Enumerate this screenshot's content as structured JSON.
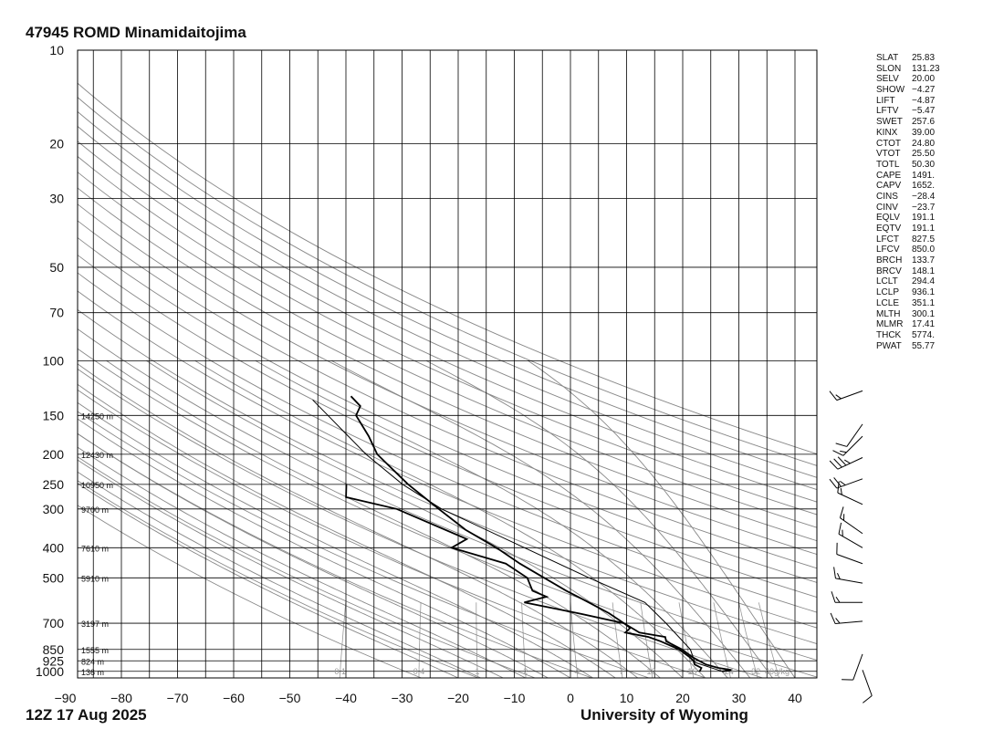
{
  "title": "47945 ROMD Minamidaitojima",
  "datetime": "12Z 17 Aug 2025",
  "credit": "University of Wyoming",
  "chart_data": {
    "type": "skew-t",
    "x_axis_temperature_ticks": [
      -90,
      -80,
      -70,
      -60,
      -50,
      -40,
      -30,
      -20,
      -10,
      0,
      10,
      20,
      30,
      40
    ],
    "y_axis_pressure_ticks": [
      10,
      20,
      30,
      50,
      70,
      100,
      150,
      200,
      250,
      300,
      400,
      500,
      700,
      850,
      925,
      1000
    ],
    "height_labels": [
      {
        "p": 150,
        "label": "14250 m"
      },
      {
        "p": 200,
        "label": "12430 m"
      },
      {
        "p": 250,
        "label": "10950 m"
      },
      {
        "p": 300,
        "label": "9700 m"
      },
      {
        "p": 400,
        "label": "7610 m"
      },
      {
        "p": 500,
        "label": "5910 m"
      },
      {
        "p": 700,
        "label": "3197 m"
      },
      {
        "p": 850,
        "label": "1555 m"
      },
      {
        "p": 925,
        "label": "824 m"
      },
      {
        "p": 1000,
        "label": "136 m"
      }
    ],
    "mixing_ratio_labels": [
      "0.1",
      "0.4",
      "1",
      "2",
      "4",
      "7",
      "10",
      "16",
      "24",
      "32",
      "40g/kg"
    ],
    "temperature_profile": [
      [
        1000,
        26.5
      ],
      [
        990,
        28
      ],
      [
        975,
        25.5
      ],
      [
        950,
        23
      ],
      [
        925,
        21.5
      ],
      [
        900,
        20
      ],
      [
        850,
        17.5
      ],
      [
        800,
        14
      ],
      [
        775,
        13.5
      ],
      [
        750,
        8.5
      ],
      [
        700,
        5
      ],
      [
        650,
        1.5
      ],
      [
        600,
        -3
      ],
      [
        550,
        -8
      ],
      [
        500,
        -13
      ],
      [
        450,
        -18.5
      ],
      [
        400,
        -24
      ],
      [
        350,
        -31
      ],
      [
        300,
        -37.5
      ],
      [
        250,
        -45
      ],
      [
        200,
        -53
      ],
      [
        175,
        -56
      ],
      [
        150,
        -60
      ],
      [
        140,
        -60
      ],
      [
        130,
        -62.5
      ]
    ],
    "dewpoint_profile": [
      [
        1000,
        22.5
      ],
      [
        990,
        22.5
      ],
      [
        975,
        22.5
      ],
      [
        950,
        21
      ],
      [
        925,
        20.5
      ],
      [
        900,
        19.5
      ],
      [
        850,
        17
      ],
      [
        800,
        13
      ],
      [
        775,
        10.5
      ],
      [
        750,
        6
      ],
      [
        725,
        6.5
      ],
      [
        700,
        5
      ],
      [
        650,
        -4
      ],
      [
        600,
        -14.5
      ],
      [
        575,
        -11
      ],
      [
        550,
        -14
      ],
      [
        500,
        -16
      ],
      [
        450,
        -21
      ],
      [
        400,
        -32
      ],
      [
        375,
        -30
      ],
      [
        300,
        -45
      ],
      [
        275,
        -55
      ],
      [
        250,
        -56
      ]
    ],
    "parcel_profile": [
      [
        1000,
        26.5
      ],
      [
        936.1,
        20.9
      ],
      [
        850,
        19
      ],
      [
        700,
        12.5
      ],
      [
        600,
        7
      ],
      [
        500,
        -5
      ],
      [
        400,
        -19
      ],
      [
        300,
        -37
      ],
      [
        250,
        -46
      ],
      [
        200,
        -55
      ],
      [
        150,
        -65
      ],
      [
        133.7,
        -69
      ]
    ],
    "indices": [
      {
        "name": "SLAT",
        "value": "25.83"
      },
      {
        "name": "SLON",
        "value": "131.23"
      },
      {
        "name": "SELV",
        "value": "20.00"
      },
      {
        "name": "SHOW",
        "value": "-4.27"
      },
      {
        "name": "LIFT",
        "value": "-4.87"
      },
      {
        "name": "LFTV",
        "value": "-5.47"
      },
      {
        "name": "SWET",
        "value": "257.6"
      },
      {
        "name": "KINX",
        "value": "39.00"
      },
      {
        "name": "CTOT",
        "value": "24.80"
      },
      {
        "name": "VTOT",
        "value": "25.50"
      },
      {
        "name": "TOTL",
        "value": "50.30"
      },
      {
        "name": "CAPE",
        "value": "1491."
      },
      {
        "name": "CAPV",
        "value": "1652."
      },
      {
        "name": "CINS",
        "value": "-28.4"
      },
      {
        "name": "CINV",
        "value": "-23.7"
      },
      {
        "name": "EQLV",
        "value": "191.1"
      },
      {
        "name": "EQTV",
        "value": "191.1"
      },
      {
        "name": "LFCT",
        "value": "827.5"
      },
      {
        "name": "LFCV",
        "value": "850.0"
      },
      {
        "name": "BRCH",
        "value": "133.7"
      },
      {
        "name": "BRCV",
        "value": "148.1"
      },
      {
        "name": "LCLT",
        "value": "294.4"
      },
      {
        "name": "LCLP",
        "value": "936.1"
      },
      {
        "name": "LCLE",
        "value": "351.1"
      },
      {
        "name": "MLTH",
        "value": "300.1"
      },
      {
        "name": "MLMR",
        "value": "17.41"
      },
      {
        "name": "THCK",
        "value": "5774."
      },
      {
        "name": "PWAT",
        "value": "55.77"
      }
    ],
    "wind_barbs": [
      {
        "p": 125,
        "dir": 250,
        "spd": 15
      },
      {
        "p": 160,
        "dir": 215,
        "spd": 10
      },
      {
        "p": 175,
        "dir": 225,
        "spd": 15
      },
      {
        "p": 205,
        "dir": 245,
        "spd": 35
      },
      {
        "p": 240,
        "dir": 250,
        "spd": 25
      },
      {
        "p": 290,
        "dir": 295,
        "spd": 15
      },
      {
        "p": 360,
        "dir": 305,
        "spd": 15
      },
      {
        "p": 400,
        "dir": 300,
        "spd": 15
      },
      {
        "p": 450,
        "dir": 290,
        "spd": 10
      },
      {
        "p": 520,
        "dir": 280,
        "spd": 15
      },
      {
        "p": 600,
        "dir": 270,
        "spd": 15
      },
      {
        "p": 690,
        "dir": 265,
        "spd": 15
      },
      {
        "p": 880,
        "dir": 200,
        "spd": 10
      },
      {
        "p": 990,
        "dir": 160,
        "spd": 10
      }
    ]
  }
}
